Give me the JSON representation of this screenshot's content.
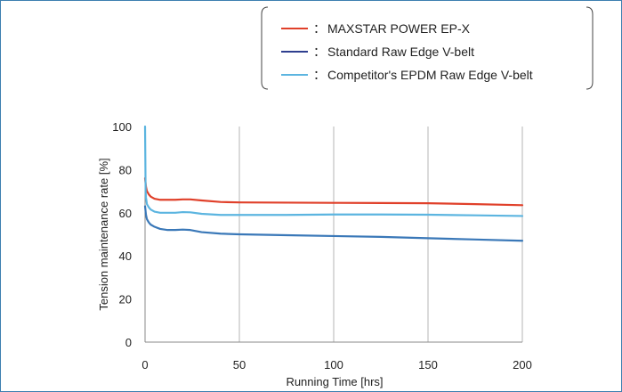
{
  "chart_data": {
    "type": "line",
    "title": "",
    "xlabel": "Running Time [hrs]",
    "ylabel": "Tension maintenance rate [%]",
    "xlim": [
      0,
      200
    ],
    "ylim": [
      0,
      100
    ],
    "x_ticks": [
      0,
      50,
      100,
      150,
      200
    ],
    "y_ticks": [
      0,
      20,
      40,
      60,
      80,
      100
    ],
    "grid": "vertical lines at x ticks",
    "legend_position": "top-right",
    "legend_separator": "：",
    "series": [
      {
        "name": "MAXSTAR POWER EP-X",
        "color": "#e0402a",
        "x": [
          0,
          0.5,
          1,
          2,
          3,
          5,
          8,
          12,
          16,
          20,
          24,
          30,
          40,
          50,
          75,
          100,
          125,
          150,
          175,
          200
        ],
        "y": [
          76,
          72,
          70,
          68.5,
          67.5,
          66.5,
          66,
          66,
          66,
          66.2,
          66.2,
          65.7,
          65,
          64.8,
          64.7,
          64.6,
          64.5,
          64.4,
          64,
          63.5
        ]
      },
      {
        "name": "Standard Raw Edge V-belt",
        "color": "#3a78b8",
        "x": [
          0,
          0.5,
          1,
          2,
          3,
          5,
          8,
          12,
          16,
          20,
          24,
          30,
          40,
          50,
          75,
          100,
          125,
          150,
          175,
          200
        ],
        "y": [
          63,
          59,
          57,
          55.5,
          54.5,
          53.5,
          52.5,
          52,
          52,
          52.2,
          52,
          51,
          50.3,
          50,
          49.6,
          49.2,
          48.8,
          48.2,
          47.6,
          47
        ]
      },
      {
        "name": "Competitor's EPDM Raw Edge V-belt",
        "color": "#5cb5e0",
        "x": [
          0,
          0.3,
          0.5,
          1,
          2,
          3,
          5,
          8,
          12,
          16,
          20,
          24,
          30,
          40,
          50,
          75,
          100,
          125,
          150,
          175,
          200
        ],
        "y": [
          100,
          70,
          67,
          64,
          62.5,
          61.5,
          60.5,
          60,
          60,
          60,
          60.3,
          60.2,
          59.5,
          59,
          59,
          59,
          59.2,
          59.2,
          59.1,
          58.8,
          58.5
        ]
      }
    ]
  }
}
